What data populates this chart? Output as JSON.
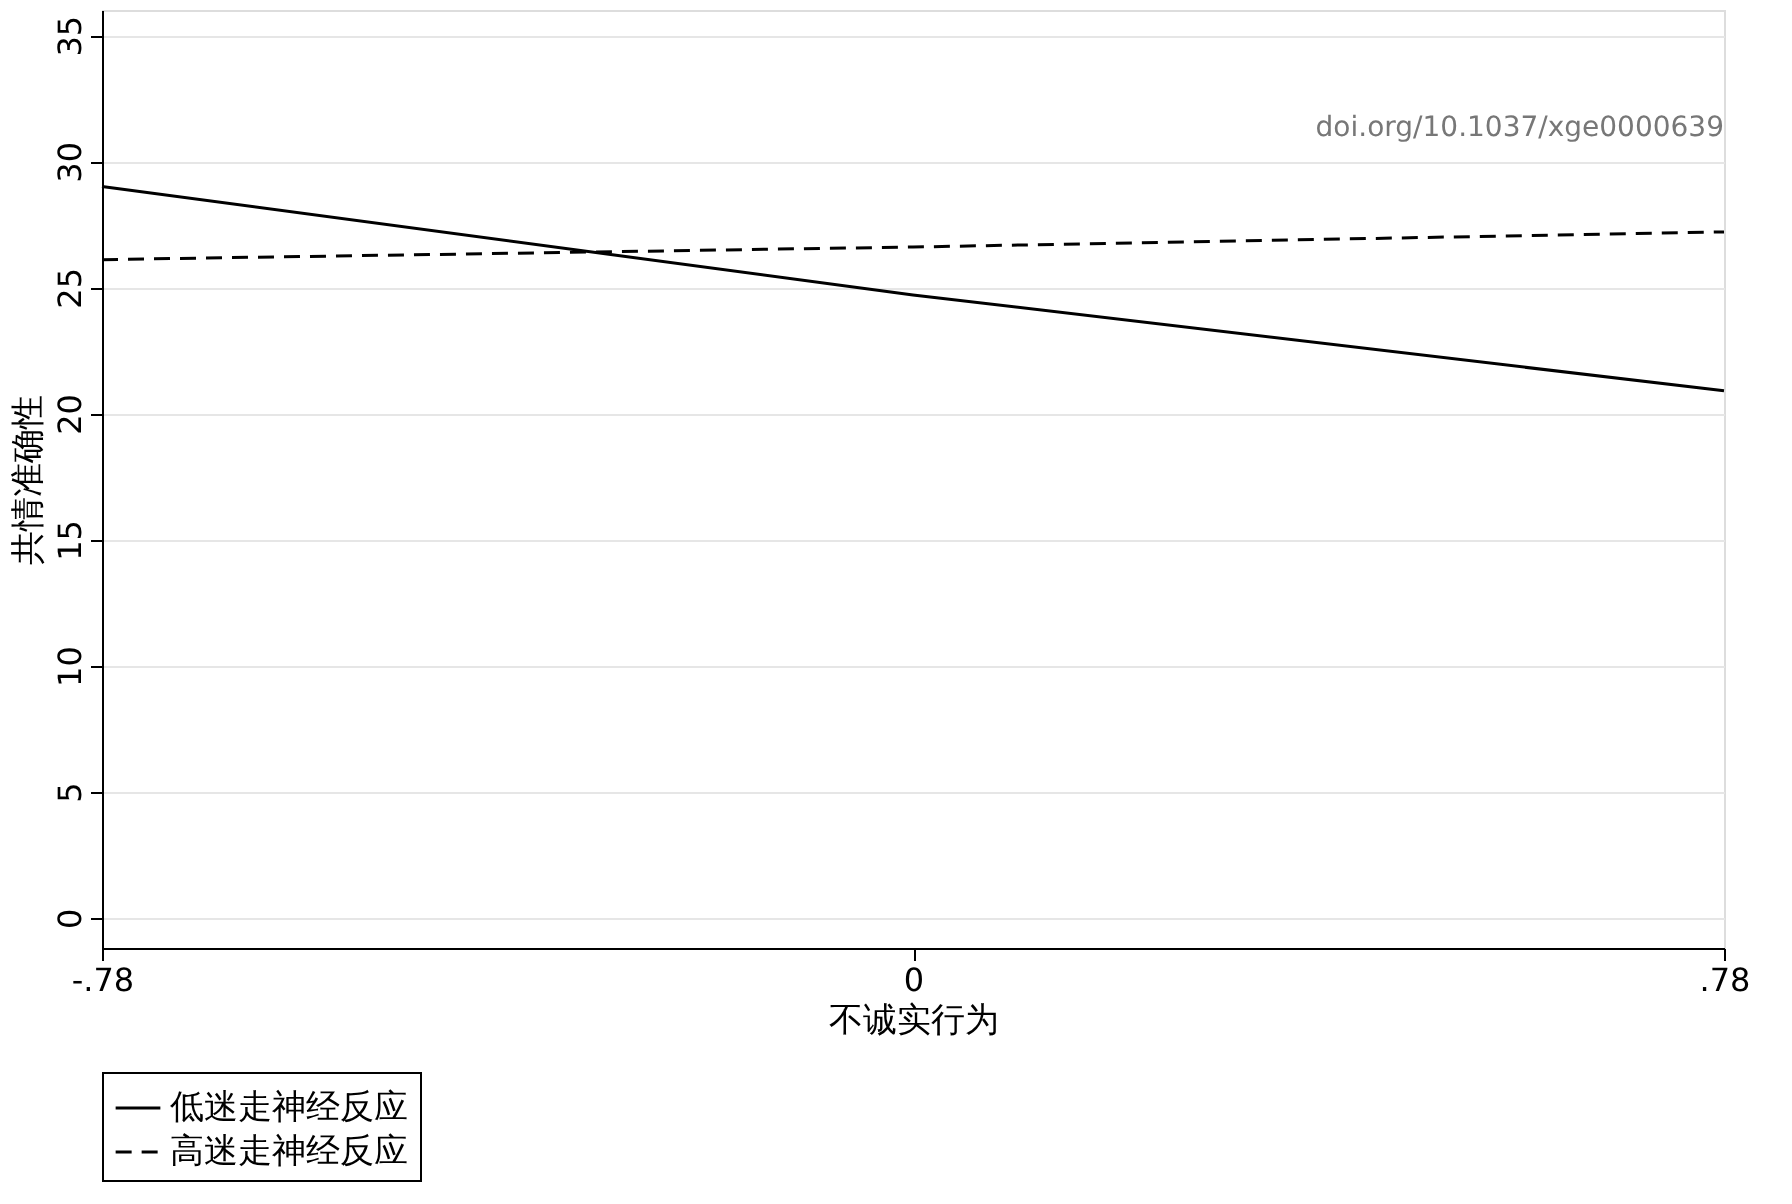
{
  "chart_data": {
    "type": "line",
    "xlabel": "不诚实行为",
    "ylabel": "共情准确性",
    "x": [
      -0.78,
      0,
      0.78
    ],
    "series": [
      {
        "name": "低迷走神经反应",
        "color": "#000000",
        "line_style": "solid",
        "values": [
          29.0,
          24.7,
          20.9
        ]
      },
      {
        "name": "高迷走神经反应",
        "color": "#000000",
        "line_style": "dashed",
        "values": [
          26.1,
          26.6,
          27.2
        ]
      }
    ],
    "xlim": [
      -0.78,
      0.78
    ],
    "xticks": [
      {
        "value": -0.78,
        "label": "-.78"
      },
      0,
      {
        "value": 0.78,
        "label": ".78"
      }
    ],
    "ylim": [
      -1.2,
      36
    ],
    "yticks": [
      0,
      5,
      10,
      15,
      20,
      25,
      30,
      35
    ],
    "grid": "y",
    "legend": "bottom",
    "marker": "none",
    "annotations": [
      "doi.org/10.1037/xge0000639"
    ]
  }
}
